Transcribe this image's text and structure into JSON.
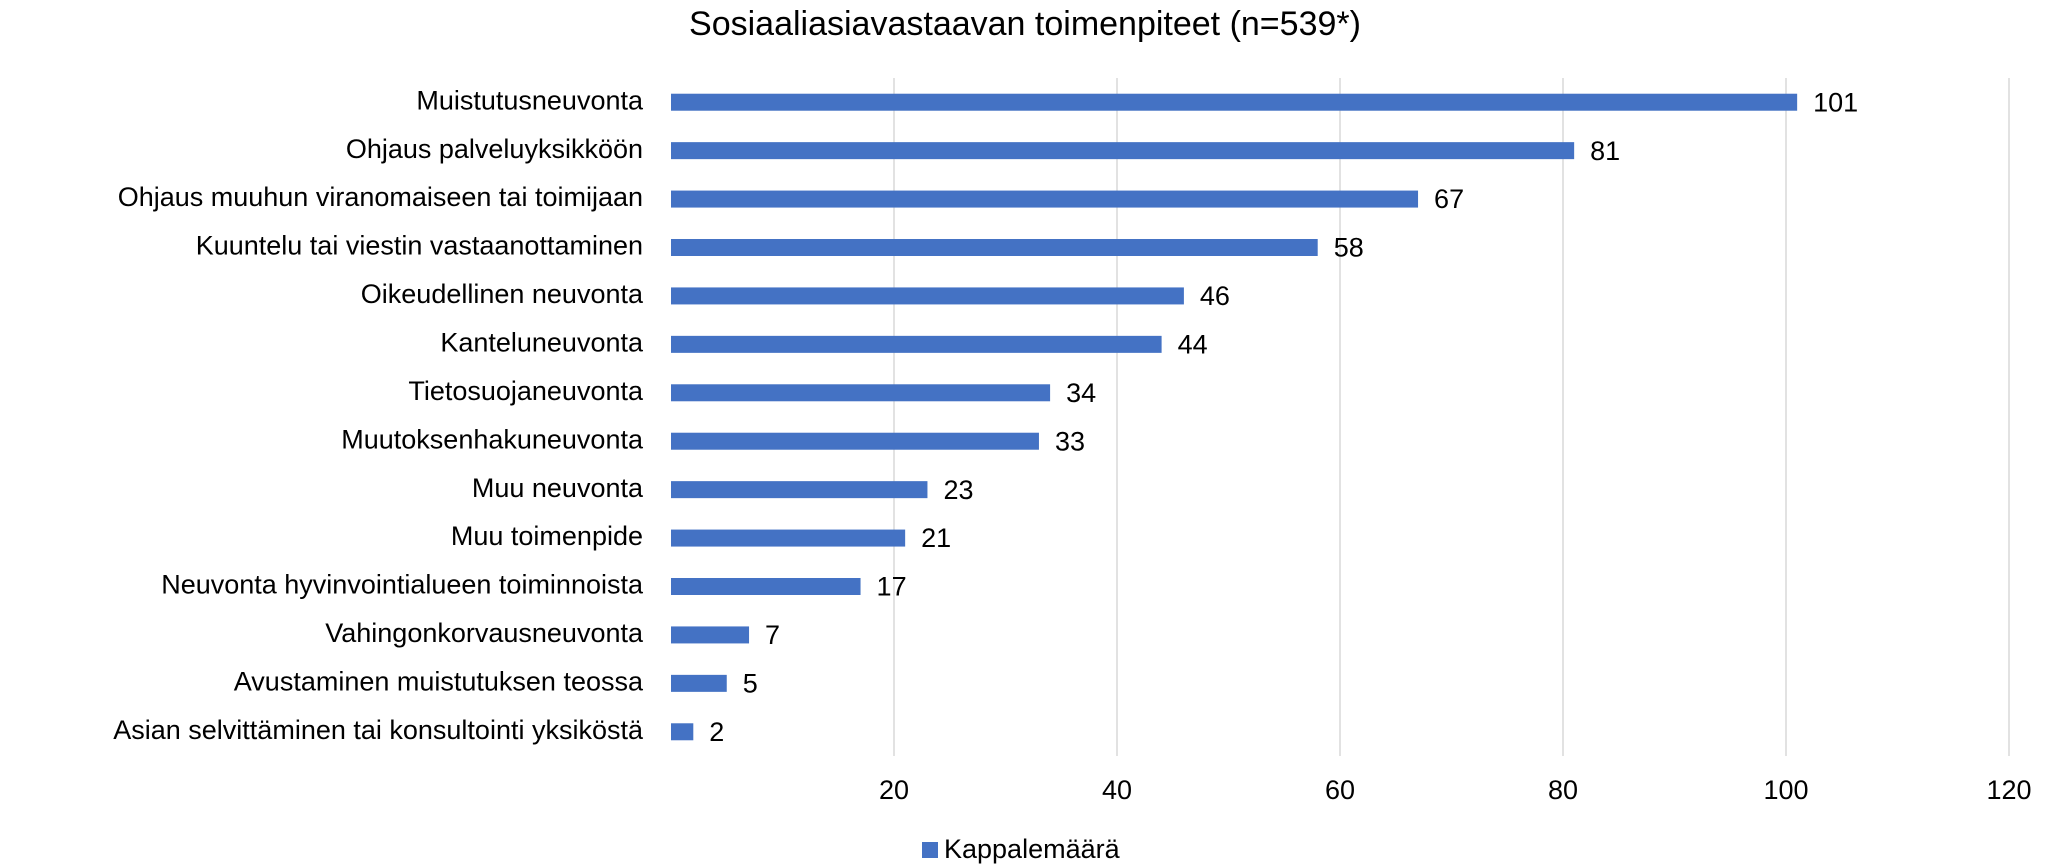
{
  "chart_data": {
    "type": "bar",
    "orientation": "horizontal",
    "title": "Sosiaaliasiavastaavan toimenpiteet (n=539*)",
    "categories": [
      "Muistutusneuvonta",
      "Ohjaus palveluyksikköön",
      "Ohjaus muuhun viranomaiseen tai toimijaan",
      "Kuuntelu tai viestin vastaanottaminen",
      "Oikeudellinen neuvonta",
      "Kanteluneuvonta",
      "Tietosuojaneuvonta",
      "Muutoksenhakuneuvonta",
      "Muu neuvonta",
      "Muu toimenpide",
      "Neuvonta hyvinvointialueen toiminnoista",
      "Vahingonkorvausneuvonta",
      "Avustaminen muistutuksen teossa",
      "Asian selvittäminen tai konsultointi yksiköstä"
    ],
    "series": [
      {
        "name": "Kappalemäärä",
        "color": "#4472c4",
        "values": [
          101,
          81,
          67,
          58,
          46,
          44,
          34,
          33,
          23,
          21,
          17,
          7,
          5,
          2
        ]
      }
    ],
    "xlim": [
      0,
      120
    ],
    "xticks": [
      20,
      40,
      60,
      80,
      100,
      120
    ],
    "grid": true,
    "legend": "bottom"
  }
}
